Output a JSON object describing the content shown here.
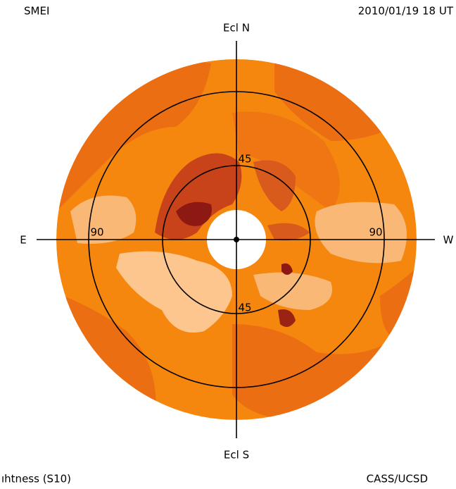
{
  "header": {
    "left": "SMEI",
    "right": "2010/01/19 18 UT"
  },
  "compass": {
    "north": "Ecl N",
    "south": "Ecl S",
    "east": "E",
    "west": "W"
  },
  "ring_labels": {
    "inner_top": "45",
    "inner_bottom": "45",
    "outer_left": "90",
    "outer_right": "90"
  },
  "footer": {
    "left": "ıhtness (S10)",
    "right": "CASS/UCSD"
  }
}
